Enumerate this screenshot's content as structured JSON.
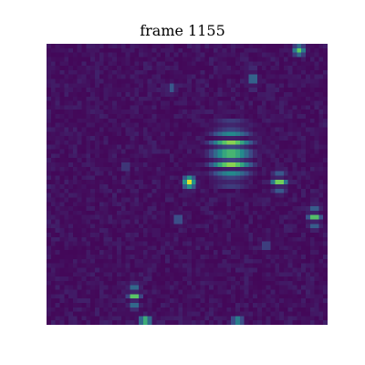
{
  "figure": {
    "title": "frame 1155"
  },
  "image": {
    "colormap": "viridis",
    "grid_size": 64,
    "colors": {
      "low": "#440154",
      "low_mid": "#3b528b",
      "mid": "#21918c",
      "high_mid": "#5ec962",
      "high": "#fde725",
      "text": "#000000",
      "background": "#ffffff"
    }
  }
}
